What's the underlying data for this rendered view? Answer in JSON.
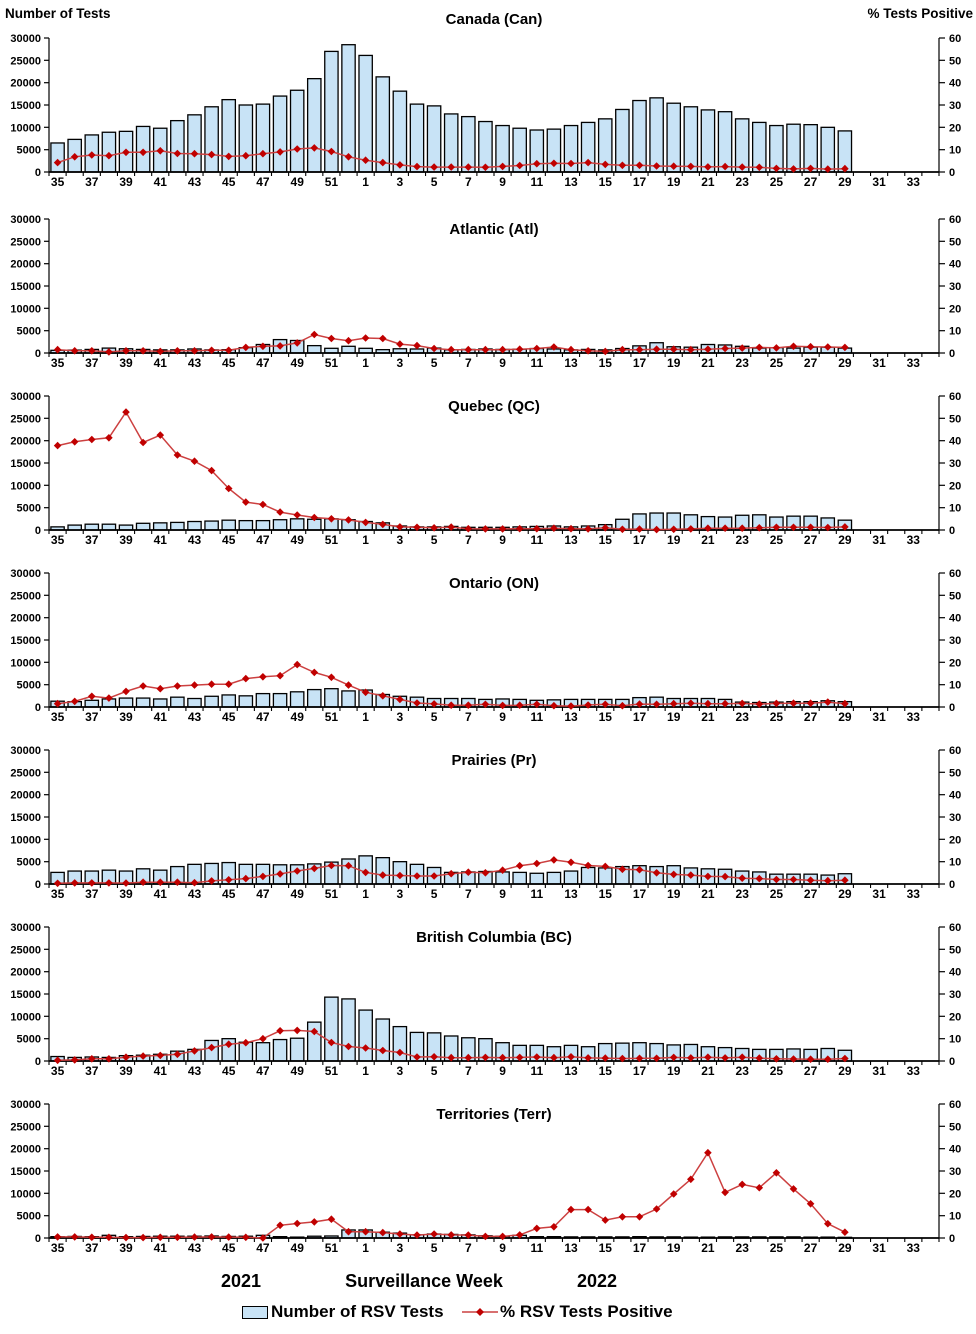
{
  "chart_data": {
    "type": "combo-bar-line-panels",
    "categories": [
      "35",
      "36",
      "37",
      "38",
      "39",
      "40",
      "41",
      "42",
      "43",
      "44",
      "45",
      "46",
      "47",
      "48",
      "49",
      "50",
      "51",
      "52",
      "1",
      "2",
      "3",
      "4",
      "5",
      "6",
      "7",
      "8",
      "9",
      "10",
      "11",
      "12",
      "13",
      "14",
      "15",
      "16",
      "17",
      "18",
      "19",
      "20",
      "21",
      "22",
      "23",
      "24",
      "25",
      "26",
      "27",
      "28",
      "29",
      "30",
      "31",
      "32",
      "33",
      "34"
    ],
    "x_tick_labels": [
      "35",
      "37",
      "39",
      "41",
      "43",
      "45",
      "47",
      "49",
      "51",
      "1",
      "3",
      "5",
      "7",
      "9",
      "11",
      "13",
      "15",
      "17",
      "19",
      "21",
      "23",
      "25",
      "27",
      "29",
      "31",
      "33"
    ],
    "left_axis": {
      "label": "Number of Tests",
      "min": 0,
      "max": 30000,
      "step": 5000
    },
    "right_axis": {
      "label": "% Tests Positive",
      "min": 0,
      "max": 60,
      "step": 10
    },
    "xlabel": "Surveillance Week",
    "year_left": "2021",
    "year_right": "2022",
    "legend": [
      {
        "label": "Number of RSV Tests",
        "series": "bars"
      },
      {
        "label": "% RSV Tests Positive",
        "series": "line"
      }
    ],
    "colors": {
      "bar_fill": "#C8E3F6",
      "bar_stroke": "#000000",
      "line": "#CC4040",
      "marker": "#C00000",
      "axis": "#000000"
    },
    "panels": [
      {
        "id": "canada",
        "title": "Canada (Can)",
        "tests": [
          6500,
          7300,
          8300,
          8900,
          9100,
          10200,
          9800,
          11500,
          12800,
          14600,
          16200,
          15000,
          15200,
          17000,
          18300,
          20900,
          27000,
          28500,
          26100,
          21300,
          18100,
          15200,
          14800,
          13000,
          12400,
          11300,
          10400,
          9800,
          9400,
          9600,
          10400,
          11100,
          11900,
          14000,
          16000,
          16600,
          15400,
          14600,
          13900,
          13500,
          11900,
          11100,
          10400,
          10700,
          10600,
          10000,
          9200
        ],
        "pct_positive": [
          4.2,
          6.8,
          7.6,
          7.3,
          8.8,
          8.8,
          9.5,
          8.3,
          8.2,
          7.8,
          7.0,
          7.3,
          8.2,
          9.0,
          10.3,
          10.8,
          9.2,
          6.8,
          5.3,
          4.2,
          3.2,
          2.4,
          2.2,
          2.2,
          2.2,
          2.1,
          2.5,
          2.9,
          3.7,
          3.9,
          3.8,
          4.2,
          3.4,
          3.0,
          3.0,
          2.7,
          2.6,
          2.5,
          2.3,
          2.4,
          2.2,
          2.1,
          1.6,
          1.4,
          1.6,
          1.3,
          1.5
        ]
      },
      {
        "id": "atlantic",
        "title": "Atlantic (Atl)",
        "tests": [
          600,
          650,
          800,
          1100,
          950,
          800,
          700,
          700,
          900,
          700,
          750,
          1200,
          1900,
          3000,
          2800,
          1650,
          1050,
          1500,
          1050,
          750,
          950,
          900,
          1100,
          700,
          800,
          900,
          800,
          850,
          1000,
          900,
          700,
          800,
          700,
          1000,
          1600,
          2300,
          1400,
          1300,
          1900,
          1800,
          1500,
          1100,
          1200,
          1100,
          1300,
          1300,
          1100
        ],
        "pct_positive": [
          1.5,
          1.0,
          1.0,
          0.5,
          1.0,
          1.0,
          0.7,
          1.0,
          1.0,
          1.2,
          1.2,
          2.5,
          3.0,
          3.2,
          4.5,
          8.3,
          6.5,
          5.5,
          6.7,
          6.5,
          4.0,
          3.3,
          2.0,
          1.5,
          1.5,
          1.5,
          1.5,
          1.7,
          2.0,
          2.7,
          1.5,
          1.0,
          0.7,
          1.5,
          1.5,
          1.7,
          1.7,
          1.5,
          1.7,
          2.0,
          2.2,
          2.5,
          2.3,
          3.0,
          2.8,
          2.7,
          2.5
        ]
      },
      {
        "id": "quebec",
        "title": "Quebec (QC)",
        "tests": [
          700,
          1100,
          1300,
          1300,
          1100,
          1500,
          1600,
          1700,
          1900,
          2000,
          2200,
          2100,
          2100,
          2300,
          2500,
          2400,
          2500,
          2300,
          1900,
          1600,
          900,
          700,
          700,
          800,
          600,
          600,
          600,
          700,
          800,
          900,
          700,
          900,
          1200,
          2400,
          3600,
          3800,
          3800,
          3400,
          3000,
          2900,
          3300,
          3400,
          2900,
          3100,
          3100,
          2700,
          2200
        ],
        "pct_positive": [
          37.8,
          39.5,
          40.5,
          41.3,
          52.8,
          39.2,
          42.5,
          33.6,
          30.8,
          26.6,
          18.6,
          12.5,
          11.4,
          8.0,
          6.7,
          5.6,
          5.0,
          4.5,
          3.4,
          2.5,
          1.4,
          1.2,
          1.0,
          1.3,
          0.6,
          0.5,
          0.5,
          0.6,
          0.6,
          0.8,
          0.6,
          0.5,
          1.0,
          0.3,
          0.4,
          0.2,
          0.3,
          0.5,
          0.8,
          0.8,
          0.8,
          1.0,
          1.2,
          1.2,
          1.2,
          1.1,
          1.4
        ]
      },
      {
        "id": "ontario",
        "title": "Ontario (ON)",
        "tests": [
          1300,
          1200,
          1500,
          1800,
          2000,
          2000,
          1800,
          2200,
          1900,
          2400,
          2700,
          2500,
          3000,
          3000,
          3400,
          3900,
          4100,
          3600,
          3800,
          2800,
          2400,
          2200,
          1900,
          1900,
          1900,
          1700,
          1800,
          1700,
          1500,
          1600,
          1700,
          1700,
          1700,
          1700,
          2100,
          2200,
          1900,
          1900,
          1900,
          1700,
          1100,
          1000,
          1100,
          1200,
          1200,
          1400,
          1200
        ],
        "pct_positive": [
          1.5,
          2.5,
          4.8,
          4.0,
          7.0,
          9.4,
          8.2,
          9.4,
          9.8,
          10.2,
          10.2,
          12.7,
          13.5,
          14.0,
          19.0,
          15.5,
          13.3,
          9.8,
          6.6,
          5.0,
          3.4,
          1.8,
          1.4,
          0.8,
          0.8,
          1.2,
          0.7,
          0.8,
          1.2,
          0.6,
          0.4,
          0.9,
          1.2,
          0.6,
          1.3,
          1.2,
          1.5,
          1.7,
          1.5,
          1.5,
          1.6,
          1.3,
          1.6,
          1.7,
          1.7,
          2.2,
          1.5
        ]
      },
      {
        "id": "prairies",
        "title": "Prairies (Pr)",
        "tests": [
          2600,
          2900,
          2900,
          3100,
          2900,
          3400,
          3100,
          3900,
          4400,
          4600,
          4800,
          4400,
          4400,
          4300,
          4300,
          4500,
          4900,
          5600,
          6300,
          5900,
          5000,
          4400,
          3700,
          2600,
          2700,
          2800,
          2700,
          2600,
          2400,
          2600,
          2900,
          3700,
          3600,
          3900,
          4100,
          3900,
          4100,
          3600,
          3400,
          3300,
          2900,
          2700,
          2200,
          2200,
          2200,
          2000,
          2300
        ],
        "pct_positive": [
          0.3,
          0.5,
          0.5,
          0.5,
          0.4,
          0.8,
          0.8,
          0.8,
          0.6,
          1.4,
          1.9,
          2.4,
          3.4,
          4.5,
          5.8,
          7.0,
          8.3,
          8.2,
          5.2,
          4.0,
          3.8,
          3.6,
          3.6,
          4.6,
          5.3,
          5.0,
          6.2,
          8.2,
          9.2,
          10.8,
          9.7,
          8.3,
          7.9,
          6.6,
          6.4,
          5.0,
          4.3,
          4.0,
          3.4,
          3.3,
          2.6,
          2.4,
          2.0,
          2.0,
          1.7,
          1.5,
          1.7
        ]
      },
      {
        "id": "british-columbia",
        "title": "British Columbia (BC)",
        "tests": [
          1000,
          800,
          900,
          800,
          1200,
          1300,
          1500,
          2200,
          2600,
          4600,
          5000,
          4200,
          4100,
          4800,
          5100,
          8700,
          14300,
          13900,
          11400,
          9400,
          7700,
          6400,
          6300,
          5600,
          5200,
          5000,
          4100,
          3500,
          3500,
          3200,
          3500,
          3200,
          3900,
          4000,
          4100,
          3900,
          3600,
          3700,
          3200,
          3000,
          2800,
          2600,
          2600,
          2700,
          2600,
          2800,
          2400
        ],
        "pct_positive": [
          0.3,
          0.5,
          1.0,
          1.0,
          1.7,
          2.2,
          2.5,
          3.0,
          4.5,
          6.0,
          7.5,
          8.2,
          10.0,
          13.5,
          13.7,
          13.2,
          8.3,
          6.5,
          5.8,
          4.7,
          3.8,
          1.8,
          1.9,
          1.5,
          1.5,
          1.6,
          1.5,
          1.6,
          1.8,
          1.5,
          1.9,
          1.4,
          1.3,
          1.1,
          1.2,
          1.2,
          1.6,
          1.4,
          1.7,
          1.4,
          1.7,
          1.3,
          1.0,
          0.9,
          0.8,
          0.8,
          1.1
        ]
      },
      {
        "id": "territories",
        "title": "Territories (Terr)",
        "tests": [
          300,
          350,
          300,
          600,
          300,
          350,
          400,
          400,
          400,
          450,
          350,
          400,
          600,
          300,
          200,
          400,
          450,
          1800,
          1800,
          1300,
          1100,
          700,
          900,
          800,
          700,
          500,
          400,
          600,
          300,
          300,
          250,
          250,
          250,
          250,
          300,
          250,
          250,
          200,
          200,
          250,
          250,
          250,
          250,
          250,
          200,
          200,
          150
        ],
        "pct_positive": [
          0.5,
          0.5,
          0.3,
          0.3,
          0.2,
          0.2,
          0.3,
          0.3,
          0.4,
          0.5,
          0.4,
          0.3,
          0.0,
          5.7,
          6.5,
          7.2,
          8.4,
          2.8,
          2.8,
          2.4,
          1.8,
          1.3,
          1.8,
          1.4,
          1.3,
          0.7,
          0.7,
          1.4,
          4.3,
          5.0,
          12.7,
          12.7,
          8.0,
          9.5,
          9.5,
          13.0,
          19.7,
          26.3,
          38.2,
          20.4,
          24.0,
          22.5,
          29.2,
          22.0,
          15.3,
          6.4,
          2.6
        ]
      }
    ]
  }
}
